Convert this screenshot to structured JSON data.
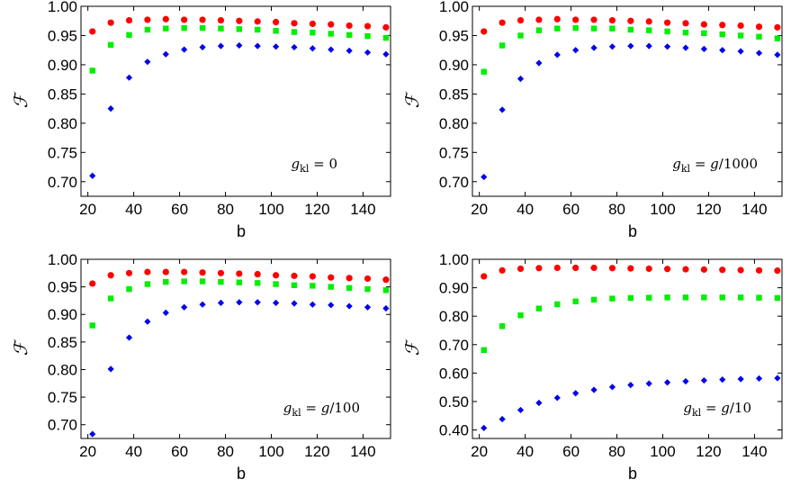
{
  "chart_data": [
    {
      "type": "scatter",
      "xlabel": "b",
      "ylabel": "ℱ",
      "annotation_parts": [
        "g",
        "kl",
        " = 0"
      ],
      "xlim": [
        17,
        152
      ],
      "ylim": [
        0.675,
        1.0
      ],
      "xticks": [
        20,
        40,
        60,
        80,
        100,
        120,
        140
      ],
      "yticks": [
        0.7,
        0.75,
        0.8,
        0.85,
        0.9,
        0.95,
        1.0
      ],
      "x": [
        22,
        30,
        38,
        46,
        54,
        62,
        70,
        78,
        86,
        94,
        102,
        110,
        118,
        126,
        134,
        142,
        150
      ],
      "series": [
        {
          "marker": "circle",
          "color": "#ff0000",
          "values": [
            0.957,
            0.972,
            0.976,
            0.977,
            0.978,
            0.977,
            0.977,
            0.976,
            0.975,
            0.974,
            0.973,
            0.971,
            0.97,
            0.969,
            0.967,
            0.966,
            0.964
          ]
        },
        {
          "marker": "square",
          "color": "#00ee00",
          "values": [
            0.89,
            0.934,
            0.951,
            0.96,
            0.962,
            0.963,
            0.963,
            0.962,
            0.961,
            0.96,
            0.958,
            0.956,
            0.955,
            0.953,
            0.951,
            0.949,
            0.946
          ]
        },
        {
          "marker": "diamond",
          "color": "#0000ee",
          "values": [
            0.71,
            0.825,
            0.878,
            0.905,
            0.918,
            0.926,
            0.93,
            0.932,
            0.933,
            0.932,
            0.931,
            0.93,
            0.928,
            0.926,
            0.924,
            0.921,
            0.918
          ]
        }
      ]
    },
    {
      "type": "scatter",
      "xlabel": "b",
      "ylabel": "ℱ",
      "annotation_parts": [
        "g",
        "kl",
        " = ",
        "g",
        "/1000"
      ],
      "xlim": [
        17,
        152
      ],
      "ylim": [
        0.675,
        1.0
      ],
      "xticks": [
        20,
        40,
        60,
        80,
        100,
        120,
        140
      ],
      "yticks": [
        0.7,
        0.75,
        0.8,
        0.85,
        0.9,
        0.95,
        1.0
      ],
      "x": [
        22,
        30,
        38,
        46,
        54,
        62,
        70,
        78,
        86,
        94,
        102,
        110,
        118,
        126,
        134,
        142,
        150
      ],
      "series": [
        {
          "marker": "circle",
          "color": "#ff0000",
          "values": [
            0.957,
            0.972,
            0.976,
            0.977,
            0.978,
            0.977,
            0.977,
            0.976,
            0.975,
            0.974,
            0.972,
            0.971,
            0.969,
            0.968,
            0.967,
            0.965,
            0.964
          ]
        },
        {
          "marker": "square",
          "color": "#00ee00",
          "values": [
            0.888,
            0.933,
            0.95,
            0.959,
            0.962,
            0.963,
            0.962,
            0.962,
            0.96,
            0.959,
            0.957,
            0.955,
            0.954,
            0.952,
            0.95,
            0.948,
            0.945
          ]
        },
        {
          "marker": "diamond",
          "color": "#0000ee",
          "values": [
            0.708,
            0.823,
            0.876,
            0.903,
            0.917,
            0.925,
            0.929,
            0.931,
            0.932,
            0.932,
            0.931,
            0.929,
            0.927,
            0.925,
            0.923,
            0.92,
            0.917
          ]
        }
      ]
    },
    {
      "type": "scatter",
      "xlabel": "b",
      "ylabel": "ℱ",
      "annotation_parts": [
        "g",
        "kl",
        " = ",
        "g",
        "/100"
      ],
      "xlim": [
        17,
        152
      ],
      "ylim": [
        0.675,
        1.0
      ],
      "xticks": [
        20,
        40,
        60,
        80,
        100,
        120,
        140
      ],
      "yticks": [
        0.7,
        0.75,
        0.8,
        0.85,
        0.9,
        0.95,
        1.0
      ],
      "x": [
        22,
        30,
        38,
        46,
        54,
        62,
        70,
        78,
        86,
        94,
        102,
        110,
        118,
        126,
        134,
        142,
        150
      ],
      "series": [
        {
          "marker": "circle",
          "color": "#ff0000",
          "values": [
            0.956,
            0.971,
            0.975,
            0.977,
            0.977,
            0.977,
            0.976,
            0.975,
            0.974,
            0.973,
            0.971,
            0.97,
            0.969,
            0.967,
            0.966,
            0.965,
            0.963
          ]
        },
        {
          "marker": "square",
          "color": "#00ee00",
          "values": [
            0.88,
            0.929,
            0.946,
            0.955,
            0.959,
            0.96,
            0.96,
            0.959,
            0.958,
            0.957,
            0.955,
            0.953,
            0.952,
            0.95,
            0.948,
            0.946,
            0.944
          ]
        },
        {
          "marker": "diamond",
          "color": "#0000ee",
          "values": [
            0.683,
            0.801,
            0.858,
            0.887,
            0.903,
            0.913,
            0.918,
            0.921,
            0.922,
            0.922,
            0.921,
            0.92,
            0.918,
            0.917,
            0.915,
            0.913,
            0.911
          ]
        }
      ]
    },
    {
      "type": "scatter",
      "xlabel": "b",
      "ylabel": "ℱ",
      "annotation_parts": [
        "g",
        "kl",
        " = ",
        "g",
        "/10"
      ],
      "xlim": [
        17,
        152
      ],
      "ylim": [
        0.37,
        1.0
      ],
      "xticks": [
        20,
        40,
        60,
        80,
        100,
        120,
        140
      ],
      "yticks": [
        0.4,
        0.5,
        0.6,
        0.7,
        0.8,
        0.9,
        1.0
      ],
      "x": [
        22,
        30,
        38,
        46,
        54,
        62,
        70,
        78,
        86,
        94,
        102,
        110,
        118,
        126,
        134,
        142,
        150
      ],
      "series": [
        {
          "marker": "circle",
          "color": "#ff0000",
          "values": [
            0.94,
            0.961,
            0.967,
            0.969,
            0.97,
            0.97,
            0.97,
            0.969,
            0.968,
            0.967,
            0.966,
            0.965,
            0.964,
            0.963,
            0.962,
            0.961,
            0.96
          ]
        },
        {
          "marker": "square",
          "color": "#00ee00",
          "values": [
            0.681,
            0.765,
            0.803,
            0.827,
            0.842,
            0.852,
            0.858,
            0.862,
            0.864,
            0.865,
            0.866,
            0.866,
            0.866,
            0.866,
            0.866,
            0.865,
            0.864
          ]
        },
        {
          "marker": "diamond",
          "color": "#0000ee",
          "values": [
            0.407,
            0.438,
            0.47,
            0.495,
            0.513,
            0.529,
            0.541,
            0.551,
            0.558,
            0.563,
            0.567,
            0.571,
            0.574,
            0.577,
            0.579,
            0.581,
            0.582
          ]
        }
      ]
    }
  ]
}
